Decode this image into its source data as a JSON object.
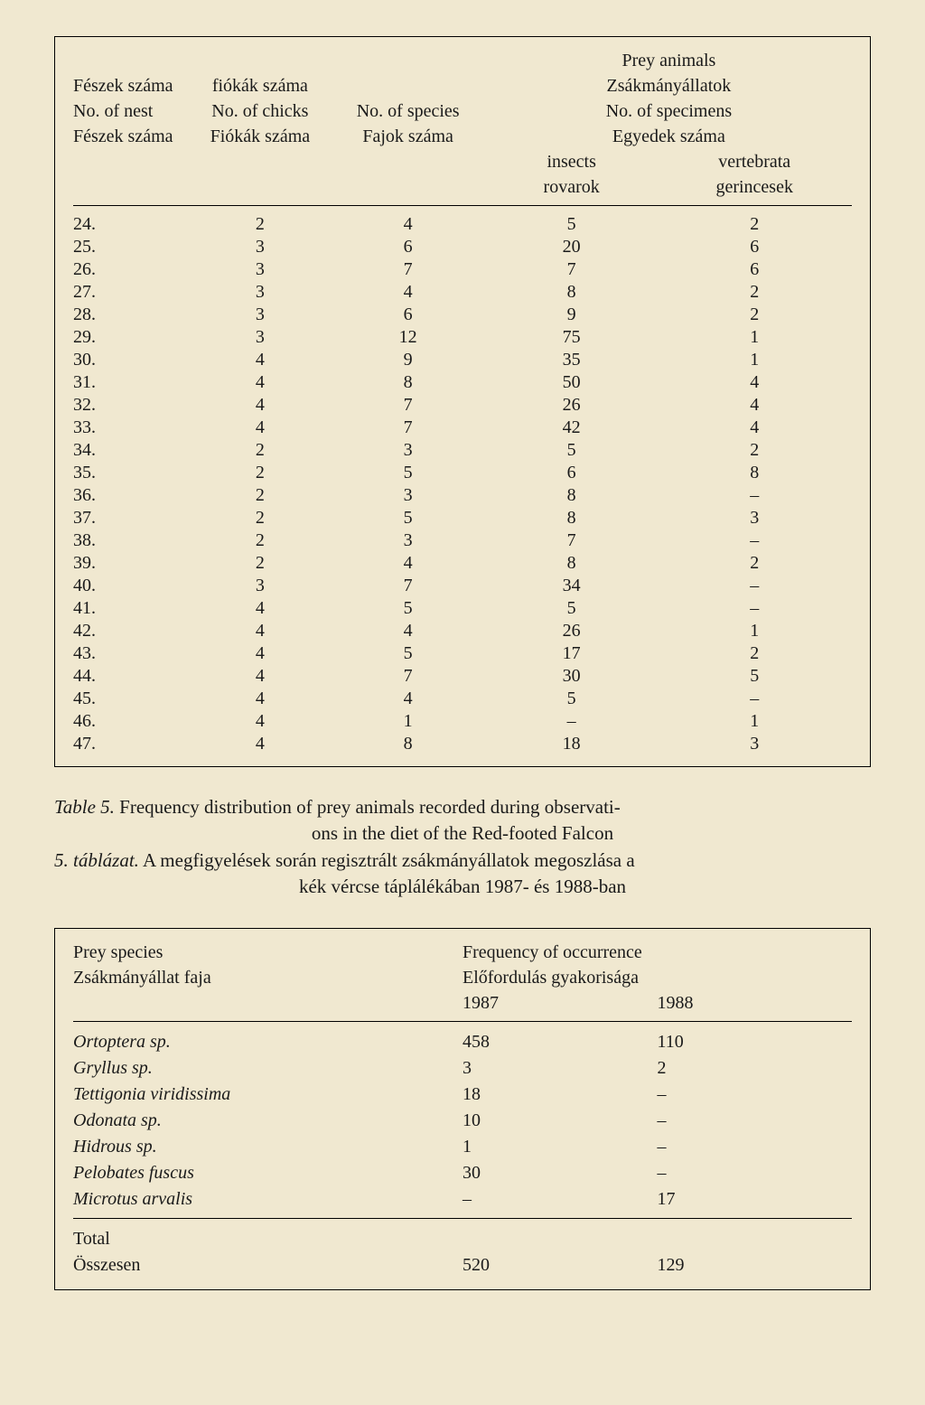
{
  "table1": {
    "header": {
      "col1_line1": "Fészek száma",
      "col1_line2": "No. of nest",
      "col1_line3": "Fészek száma",
      "col2_line1": "fiókák száma",
      "col2_line2": "No. of chicks",
      "col2_line3": "Fiókák száma",
      "col3_line2": "No. of species",
      "col3_line3": "Fajok száma",
      "prey_line1": "Prey animals",
      "prey_line2": "Zsákmányállatok",
      "col4_line2": "No. of specimens",
      "col4_line3": "Egyedek száma",
      "col4_line4": "insects",
      "col4_line5": "rovarok",
      "col5_line4": "vertebrata",
      "col5_line5": "gerincesek"
    },
    "rows": [
      {
        "nest": "24.",
        "chicks": "2",
        "species": "4",
        "insects": "5",
        "vertebrata": "2"
      },
      {
        "nest": "25.",
        "chicks": "3",
        "species": "6",
        "insects": "20",
        "vertebrata": "6"
      },
      {
        "nest": "26.",
        "chicks": "3",
        "species": "7",
        "insects": "7",
        "vertebrata": "6"
      },
      {
        "nest": "27.",
        "chicks": "3",
        "species": "4",
        "insects": "8",
        "vertebrata": "2"
      },
      {
        "nest": "28.",
        "chicks": "3",
        "species": "6",
        "insects": "9",
        "vertebrata": "2"
      },
      {
        "nest": "29.",
        "chicks": "3",
        "species": "12",
        "insects": "75",
        "vertebrata": "1"
      },
      {
        "nest": "30.",
        "chicks": "4",
        "species": "9",
        "insects": "35",
        "vertebrata": "1"
      },
      {
        "nest": "31.",
        "chicks": "4",
        "species": "8",
        "insects": "50",
        "vertebrata": "4"
      },
      {
        "nest": "32.",
        "chicks": "4",
        "species": "7",
        "insects": "26",
        "vertebrata": "4"
      },
      {
        "nest": "33.",
        "chicks": "4",
        "species": "7",
        "insects": "42",
        "vertebrata": "4"
      },
      {
        "nest": "34.",
        "chicks": "2",
        "species": "3",
        "insects": "5",
        "vertebrata": "2"
      },
      {
        "nest": "35.",
        "chicks": "2",
        "species": "5",
        "insects": "6",
        "vertebrata": "8"
      },
      {
        "nest": "36.",
        "chicks": "2",
        "species": "3",
        "insects": "8",
        "vertebrata": "–"
      },
      {
        "nest": "37.",
        "chicks": "2",
        "species": "5",
        "insects": "8",
        "vertebrata": "3"
      },
      {
        "nest": "38.",
        "chicks": "2",
        "species": "3",
        "insects": "7",
        "vertebrata": "–"
      },
      {
        "nest": "39.",
        "chicks": "2",
        "species": "4",
        "insects": "8",
        "vertebrata": "2"
      },
      {
        "nest": "40.",
        "chicks": "3",
        "species": "7",
        "insects": "34",
        "vertebrata": "–"
      },
      {
        "nest": "41.",
        "chicks": "4",
        "species": "5",
        "insects": "5",
        "vertebrata": "–"
      },
      {
        "nest": "42.",
        "chicks": "4",
        "species": "4",
        "insects": "26",
        "vertebrata": "1"
      },
      {
        "nest": "43.",
        "chicks": "4",
        "species": "5",
        "insects": "17",
        "vertebrata": "2"
      },
      {
        "nest": "44.",
        "chicks": "4",
        "species": "7",
        "insects": "30",
        "vertebrata": "5"
      },
      {
        "nest": "45.",
        "chicks": "4",
        "species": "4",
        "insects": "5",
        "vertebrata": "–"
      },
      {
        "nest": "46.",
        "chicks": "4",
        "species": "1",
        "insects": "–",
        "vertebrata": "1"
      },
      {
        "nest": "47.",
        "chicks": "4",
        "species": "8",
        "insects": "18",
        "vertebrata": "3"
      }
    ]
  },
  "caption": {
    "line1_prefix": "Table 5.",
    "line1_text": " Frequency distribution of prey animals recorded during observati-",
    "line2_text": "ons in the diet of the Red-footed Falcon",
    "line3_prefix": "5. táblázat.",
    "line3_text": " A megfigyelések során regisztrált zsákmányállatok megoszlása a",
    "line4_text": "kék vércse táplálékában 1987- és 1988-ban"
  },
  "table2": {
    "header": {
      "species_en": "Prey species",
      "species_hu": "Zsákmányállat faja",
      "freq_en": "Frequency of occurrence",
      "freq_hu": "Előfordulás gyakorisága",
      "year1": "1987",
      "year2": "1988"
    },
    "rows": [
      {
        "species": "Ortoptera sp.",
        "y1987": "458",
        "y1988": "110"
      },
      {
        "species": "Gryllus sp.",
        "y1987": "3",
        "y1988": "2"
      },
      {
        "species": "Tettigonia viridissima",
        "y1987": "18",
        "y1988": "–"
      },
      {
        "species": "Odonata sp.",
        "y1987": "10",
        "y1988": "–"
      },
      {
        "species": "Hidrous sp.",
        "y1987": "1",
        "y1988": "–"
      },
      {
        "species": "Pelobates fuscus",
        "y1987": "30",
        "y1988": "–"
      },
      {
        "species": "Microtus arvalis",
        "y1987": "–",
        "y1988": "17"
      }
    ],
    "total": {
      "label_en": "Total",
      "label_hu": "Összesen",
      "y1987": "520",
      "y1988": "129"
    }
  }
}
